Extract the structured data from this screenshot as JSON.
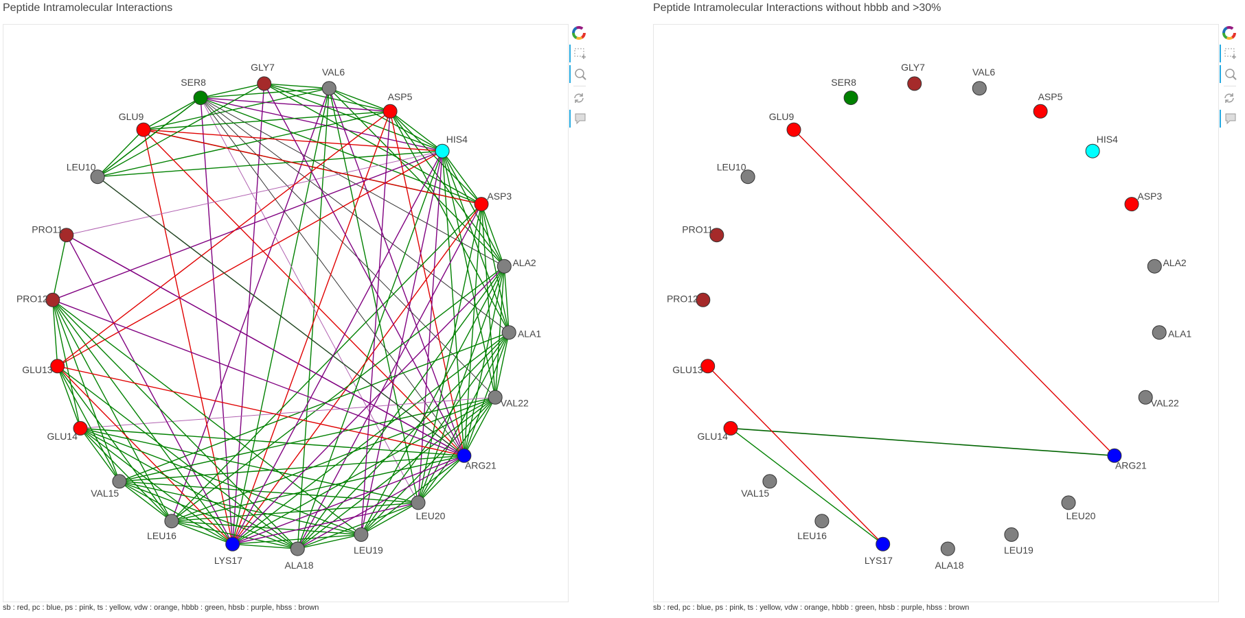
{
  "panels": [
    {
      "id": "left",
      "title": "Peptide Intramolecular Interactions"
    },
    {
      "id": "right",
      "title": "Peptide Intramolecular Interactions without hbbb and >30%"
    }
  ],
  "legend_text": "sb : red, pc : blue, ps : pink, ts : yellow, vdw : orange, hbbb : green, hbsb : purple, hbss : brown",
  "toolbar": {
    "tools": [
      {
        "name": "bokeh-logo",
        "icon": "bokeh-logo-icon"
      },
      {
        "name": "box-zoom",
        "icon": "box-zoom-icon",
        "active": true
      },
      {
        "name": "wheel-zoom",
        "icon": "wheel-zoom-icon",
        "active": true
      },
      {
        "name": "reset",
        "icon": "reset-icon"
      },
      {
        "name": "hover",
        "icon": "hover-icon",
        "active": true
      }
    ]
  },
  "colors": {
    "red": "#ff0000",
    "blue": "#0000ff",
    "gray": "#808080",
    "brown": "#a52a2a",
    "green": "#008000",
    "cyan": "#00ffff",
    "edge_sb": "#e00000",
    "edge_hbbb": "#008000",
    "edge_hbsb": "#800080",
    "edge_hbsb_light": "#b060b0",
    "edge_dark": "#303030"
  },
  "chart_data": {
    "type": "network",
    "nodes": [
      {
        "name": "ALA1",
        "color": "gray"
      },
      {
        "name": "ALA2",
        "color": "gray"
      },
      {
        "name": "ASP3",
        "color": "red"
      },
      {
        "name": "HIS4",
        "color": "cyan"
      },
      {
        "name": "ASP5",
        "color": "red"
      },
      {
        "name": "VAL6",
        "color": "gray"
      },
      {
        "name": "GLY7",
        "color": "brown"
      },
      {
        "name": "SER8",
        "color": "green"
      },
      {
        "name": "GLU9",
        "color": "red"
      },
      {
        "name": "LEU10",
        "color": "gray"
      },
      {
        "name": "PRO11",
        "color": "brown"
      },
      {
        "name": "PRO12",
        "color": "brown"
      },
      {
        "name": "GLU13",
        "color": "red"
      },
      {
        "name": "GLU14",
        "color": "red"
      },
      {
        "name": "VAL15",
        "color": "gray"
      },
      {
        "name": "LEU16",
        "color": "gray"
      },
      {
        "name": "LYS17",
        "color": "blue"
      },
      {
        "name": "ALA18",
        "color": "gray"
      },
      {
        "name": "LEU19",
        "color": "gray"
      },
      {
        "name": "LEU20",
        "color": "gray"
      },
      {
        "name": "ARG21",
        "color": "blue"
      },
      {
        "name": "VAL22",
        "color": "gray"
      }
    ],
    "edges_all": [
      [
        "GLY7",
        "VAL6",
        "hbbb"
      ],
      [
        "GLY7",
        "SER8",
        "hbbb"
      ],
      [
        "GLY7",
        "ASP5",
        "hbbb"
      ],
      [
        "GLY7",
        "HIS4",
        "hbbb"
      ],
      [
        "GLY7",
        "LYS17",
        "hbsb"
      ],
      [
        "GLY7",
        "ASP3",
        "hbbb"
      ],
      [
        "VAL6",
        "SER8",
        "hbbb"
      ],
      [
        "VAL6",
        "ASP5",
        "hbbb"
      ],
      [
        "VAL6",
        "HIS4",
        "hbbb"
      ],
      [
        "VAL6",
        "GLU9",
        "hbbb"
      ],
      [
        "VAL6",
        "ALA2",
        "hbbb"
      ],
      [
        "VAL6",
        "ALA18",
        "hbbb"
      ],
      [
        "VAL6",
        "LEU20",
        "hbbb"
      ],
      [
        "VAL6",
        "LYS17",
        "hbbb"
      ],
      [
        "VAL6",
        "LEU16",
        "hbsb"
      ],
      [
        "VAL6",
        "ARG21",
        "hbsb"
      ],
      [
        "SER8",
        "GLU9",
        "hbbb"
      ],
      [
        "SER8",
        "HIS4",
        "hbsb"
      ],
      [
        "SER8",
        "ASP5",
        "hbsb"
      ],
      [
        "SER8",
        "LEU10",
        "hbbb"
      ],
      [
        "SER8",
        "ASP3",
        "hbbb"
      ],
      [
        "SER8",
        "ALA1",
        "dark"
      ],
      [
        "SER8",
        "VAL22",
        "dark"
      ],
      [
        "SER8",
        "ARG21",
        "dark"
      ],
      [
        "SER8",
        "LYS17",
        "hbsb"
      ],
      [
        "SER8",
        "LEU20",
        "hbsb_light"
      ],
      [
        "SER8",
        "ALA2",
        "dark"
      ],
      [
        "ASP5",
        "HIS4",
        "hbbb"
      ],
      [
        "ASP5",
        "ASP3",
        "hbbb"
      ],
      [
        "ASP5",
        "ALA2",
        "hbbb"
      ],
      [
        "ASP5",
        "LYS17",
        "sb"
      ],
      [
        "ASP5",
        "ARG21",
        "sb"
      ],
      [
        "ASP5",
        "GLU9",
        "hbbb"
      ],
      [
        "ASP5",
        "LEU10",
        "hbbb"
      ],
      [
        "ASP5",
        "ALA1",
        "hbbb"
      ],
      [
        "GLU9",
        "HIS4",
        "sb"
      ],
      [
        "GLU9",
        "ARG21",
        "sb"
      ],
      [
        "GLU9",
        "LYS17",
        "sb"
      ],
      [
        "GLU9",
        "LEU10",
        "hbbb"
      ],
      [
        "GLU9",
        "ASP3",
        "hbbb"
      ],
      [
        "HIS4",
        "ASP3",
        "hbbb"
      ],
      [
        "HIS4",
        "ALA2",
        "hbbb"
      ],
      [
        "HIS4",
        "ALA1",
        "hbbb"
      ],
      [
        "HIS4",
        "VAL22",
        "hbbb"
      ],
      [
        "HIS4",
        "ARG21",
        "hbbb"
      ],
      [
        "HIS4",
        "PRO11",
        "hbsb_light"
      ],
      [
        "HIS4",
        "PRO12",
        "hbsb"
      ],
      [
        "HIS4",
        "GLU13",
        "sb"
      ],
      [
        "HIS4",
        "LEU10",
        "hbbb"
      ],
      [
        "HIS4",
        "LEU19",
        "hbsb"
      ],
      [
        "HIS4",
        "ALA18",
        "hbbb"
      ],
      [
        "HIS4",
        "LEU20",
        "hbsb"
      ],
      [
        "ASP3",
        "ALA2",
        "hbbb"
      ],
      [
        "ASP3",
        "ALA1",
        "hbbb"
      ],
      [
        "ASP3",
        "VAL22",
        "hbbb"
      ],
      [
        "ASP3",
        "ARG21",
        "hbbb"
      ],
      [
        "ASP3",
        "LEU20",
        "hbbb"
      ],
      [
        "ASP3",
        "LYS17",
        "sb"
      ],
      [
        "ASP3",
        "ALA18",
        "hbsb"
      ],
      [
        "ASP3",
        "LEU16",
        "hbbb"
      ],
      [
        "ASP3",
        "GLU9",
        "sb"
      ],
      [
        "ALA2",
        "ALA1",
        "hbbb"
      ],
      [
        "ALA2",
        "VAL22",
        "hbbb"
      ],
      [
        "ALA2",
        "ARG21",
        "hbbb"
      ],
      [
        "ALA2",
        "LEU20",
        "hbbb"
      ],
      [
        "ALA2",
        "LEU19",
        "hbbb"
      ],
      [
        "ALA2",
        "LEU16",
        "hbbb"
      ],
      [
        "ALA2",
        "ALA18",
        "hbbb"
      ],
      [
        "ALA1",
        "VAL22",
        "hbbb"
      ],
      [
        "ALA1",
        "ARG21",
        "hbbb"
      ],
      [
        "ALA1",
        "LEU20",
        "hbbb"
      ],
      [
        "ALA1",
        "LEU19",
        "hbbb"
      ],
      [
        "ALA1",
        "VAL15",
        "hbbb"
      ],
      [
        "ALA1",
        "LYS17",
        "hbbb"
      ],
      [
        "ALA1",
        "ALA18",
        "hbbb"
      ],
      [
        "VAL22",
        "ARG21",
        "hbbb"
      ],
      [
        "VAL22",
        "LEU20",
        "hbbb"
      ],
      [
        "VAL22",
        "LEU19",
        "hbbb"
      ],
      [
        "VAL22",
        "ALA18",
        "hbbb"
      ],
      [
        "VAL22",
        "LYS17",
        "hbbb"
      ],
      [
        "VAL22",
        "GLU14",
        "hbsb_light"
      ],
      [
        "VAL22",
        "LEU16",
        "hbbb"
      ],
      [
        "LEU10",
        "ARG21",
        "hbbb"
      ],
      [
        "LEU10",
        "GLY7",
        "hbbb"
      ],
      [
        "LEU10",
        "SER8",
        "hbbb"
      ],
      [
        "PRO11",
        "PRO12",
        "hbbb"
      ],
      [
        "PRO11",
        "ARG21",
        "hbsb"
      ],
      [
        "PRO11",
        "LYS17",
        "hbsb"
      ],
      [
        "PRO12",
        "ARG21",
        "hbsb"
      ],
      [
        "PRO12",
        "LEU16",
        "hbbb"
      ],
      [
        "PRO12",
        "VAL15",
        "hbbb"
      ],
      [
        "PRO12",
        "LYS17",
        "hbbb"
      ],
      [
        "PRO12",
        "ALA18",
        "hbbb"
      ],
      [
        "PRO12",
        "LEU19",
        "hbbb"
      ],
      [
        "PRO12",
        "GLU13",
        "hbbb"
      ],
      [
        "PRO12",
        "GLU14",
        "hbbb"
      ],
      [
        "GLU13",
        "ARG21",
        "sb"
      ],
      [
        "GLU13",
        "LYS17",
        "sb"
      ],
      [
        "GLU13",
        "LEU16",
        "hbbb"
      ],
      [
        "GLU13",
        "VAL15",
        "hbbb"
      ],
      [
        "GLU13",
        "GLU14",
        "hbbb"
      ],
      [
        "GLU13",
        "ALA18",
        "hbbb"
      ],
      [
        "GLU13",
        "ASP5",
        "sb"
      ],
      [
        "GLU14",
        "ARG21",
        "hbbb"
      ],
      [
        "GLU14",
        "LYS17",
        "hbbb"
      ],
      [
        "GLU14",
        "VAL15",
        "hbbb"
      ],
      [
        "GLU14",
        "LEU16",
        "hbbb"
      ],
      [
        "GLU14",
        "ALA18",
        "hbbb"
      ],
      [
        "GLU14",
        "LEU19",
        "hbbb"
      ],
      [
        "GLU14",
        "LEU20",
        "hbbb"
      ],
      [
        "VAL15",
        "LEU16",
        "hbbb"
      ],
      [
        "VAL15",
        "LYS17",
        "hbbb"
      ],
      [
        "VAL15",
        "ALA18",
        "hbbb"
      ],
      [
        "VAL15",
        "ARG21",
        "hbbb"
      ],
      [
        "VAL15",
        "LEU19",
        "hbbb"
      ],
      [
        "VAL15",
        "LEU20",
        "hbbb"
      ],
      [
        "VAL15",
        "VAL22",
        "hbbb"
      ],
      [
        "LEU16",
        "LYS17",
        "hbbb"
      ],
      [
        "LEU16",
        "ALA18",
        "hbbb"
      ],
      [
        "LEU16",
        "LEU19",
        "hbbb"
      ],
      [
        "LEU16",
        "ARG21",
        "hbbb"
      ],
      [
        "LEU16",
        "LEU20",
        "hbbb"
      ],
      [
        "LYS17",
        "ALA18",
        "hbbb"
      ],
      [
        "LYS17",
        "LEU19",
        "hbbb"
      ],
      [
        "LYS17",
        "LEU20",
        "hbsb"
      ],
      [
        "LYS17",
        "ARG21",
        "hbsb"
      ],
      [
        "LYS17",
        "ALA2",
        "hbsb"
      ],
      [
        "LYS17",
        "HIS4",
        "hbsb"
      ],
      [
        "ALA18",
        "LEU19",
        "hbbb"
      ],
      [
        "ALA18",
        "ARG21",
        "hbsb"
      ],
      [
        "ALA18",
        "LEU20",
        "hbbb"
      ],
      [
        "LEU19",
        "LEU20",
        "hbbb"
      ],
      [
        "LEU19",
        "ARG21",
        "hbbb"
      ],
      [
        "LEU19",
        "ASP5",
        "hbsb"
      ],
      [
        "LEU20",
        "ARG21",
        "hbbb"
      ],
      [
        "ARG21",
        "GLY7",
        "hbsb"
      ],
      [
        "ARG21",
        "LEU10",
        "dark"
      ],
      [
        "ARG21",
        "PRO11",
        "hbsb"
      ]
    ],
    "edges_filtered": [
      [
        "GLU9",
        "ARG21",
        "sb"
      ],
      [
        "GLU14",
        "ARG21",
        "hbbb_dark"
      ],
      [
        "GLU13",
        "LYS17",
        "sb"
      ],
      [
        "GLU14",
        "LYS17",
        "hbbb"
      ]
    ]
  }
}
